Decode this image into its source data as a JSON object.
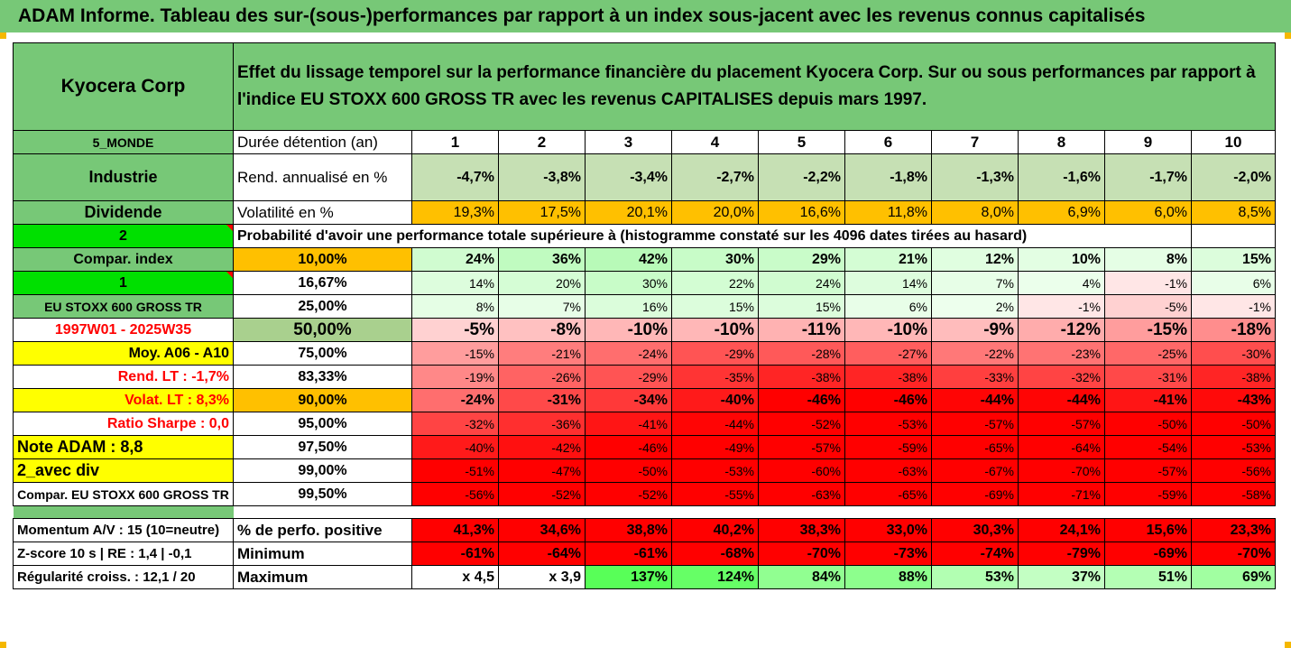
{
  "title": "ADAM Informe. Tableau des sur-(sous-)performances par rapport à un index sous-jacent avec les revenus connus capitalisés",
  "header": {
    "company": "Kyocera Corp",
    "description": "Effet du lissage temporel sur la performance financière du placement Kyocera Corp. Sur ou sous performances par rapport à l'indice EU STOXX 600 GROSS TR avec les revenus CAPITALISES depuis mars 1997."
  },
  "side": {
    "region": "5_MONDE",
    "sector": "Industrie",
    "dividend_label": "Dividende",
    "dividend_value": "2",
    "compar_index": "Compar. index",
    "compar_value": "1",
    "index_name": "EU STOXX 600 GROSS TR",
    "period": "1997W01 - 2025W35",
    "moy": "Moy. A06 - A10",
    "rend_lt": "Rend. LT :   -1,7%",
    "volat_lt": "Volat. LT :   8,3%",
    "sharpe": "Ratio Sharpe :   0,0",
    "note": "Note ADAM : 8,8",
    "avec_div": "2_avec div",
    "compar_full": "Compar. EU STOXX 600 GROSS TR"
  },
  "rows": {
    "duree": {
      "label": "Durée détention (an)",
      "values": [
        "1",
        "2",
        "3",
        "4",
        "5",
        "6",
        "7",
        "8",
        "9",
        "10"
      ]
    },
    "rend": {
      "label": "Rend. annualisé en %",
      "values": [
        "-4,7%",
        "-3,8%",
        "-3,4%",
        "-2,7%",
        "-2,2%",
        "-1,8%",
        "-1,3%",
        "-1,6%",
        "-1,7%",
        "-2,0%"
      ]
    },
    "vol": {
      "label": "Volatilité en %",
      "values": [
        "19,3%",
        "17,5%",
        "20,1%",
        "20,0%",
        "16,6%",
        "11,8%",
        "8,0%",
        "6,9%",
        "6,0%",
        "8,5%"
      ]
    },
    "prob_caption": "Probabilité d'avoir une performance totale supérieure à (histogramme constaté sur les 4096 dates tirées au hasard)"
  },
  "quantiles": [
    {
      "pct": "10,00%",
      "values": [
        "24%",
        "36%",
        "42%",
        "30%",
        "29%",
        "21%",
        "12%",
        "10%",
        "8%",
        "15%"
      ]
    },
    {
      "pct": "16,67%",
      "values": [
        "14%",
        "20%",
        "30%",
        "22%",
        "24%",
        "14%",
        "7%",
        "4%",
        "-1%",
        "6%"
      ]
    },
    {
      "pct": "25,00%",
      "values": [
        "8%",
        "7%",
        "16%",
        "15%",
        "15%",
        "6%",
        "2%",
        "-1%",
        "-5%",
        "-1%"
      ]
    },
    {
      "pct": "50,00%",
      "values": [
        "-5%",
        "-8%",
        "-10%",
        "-10%",
        "-11%",
        "-10%",
        "-9%",
        "-12%",
        "-15%",
        "-18%"
      ]
    },
    {
      "pct": "75,00%",
      "values": [
        "-15%",
        "-21%",
        "-24%",
        "-29%",
        "-28%",
        "-27%",
        "-22%",
        "-23%",
        "-25%",
        "-30%"
      ]
    },
    {
      "pct": "83,33%",
      "values": [
        "-19%",
        "-26%",
        "-29%",
        "-35%",
        "-38%",
        "-38%",
        "-33%",
        "-32%",
        "-31%",
        "-38%"
      ]
    },
    {
      "pct": "90,00%",
      "values": [
        "-24%",
        "-31%",
        "-34%",
        "-40%",
        "-46%",
        "-46%",
        "-44%",
        "-44%",
        "-41%",
        "-43%"
      ]
    },
    {
      "pct": "95,00%",
      "values": [
        "-32%",
        "-36%",
        "-41%",
        "-44%",
        "-52%",
        "-53%",
        "-57%",
        "-57%",
        "-50%",
        "-50%"
      ]
    },
    {
      "pct": "97,50%",
      "values": [
        "-40%",
        "-42%",
        "-46%",
        "-49%",
        "-57%",
        "-59%",
        "-65%",
        "-64%",
        "-54%",
        "-53%"
      ]
    },
    {
      "pct": "99,00%",
      "values": [
        "-51%",
        "-47%",
        "-50%",
        "-53%",
        "-60%",
        "-63%",
        "-67%",
        "-70%",
        "-57%",
        "-56%"
      ]
    },
    {
      "pct": "99,50%",
      "values": [
        "-56%",
        "-52%",
        "-52%",
        "-55%",
        "-63%",
        "-65%",
        "-69%",
        "-71%",
        "-59%",
        "-58%"
      ]
    }
  ],
  "bottom": [
    {
      "side": "Momentum A/V : 15 (10=neutre)",
      "label": "% de perfo. positive",
      "values": [
        "41,3%",
        "34,6%",
        "38,8%",
        "40,2%",
        "38,3%",
        "33,0%",
        "30,3%",
        "24,1%",
        "15,6%",
        "23,3%"
      ]
    },
    {
      "side": "Z-score 10 s  | RE : 1,4 | -0,1",
      "label": "Minimum",
      "values": [
        "-61%",
        "-64%",
        "-61%",
        "-68%",
        "-70%",
        "-73%",
        "-74%",
        "-79%",
        "-69%",
        "-70%"
      ]
    },
    {
      "side": "Régularité croiss. : 12,1 / 20",
      "label": "Maximum",
      "values": [
        "x 4,5",
        "x 3,9",
        "137%",
        "124%",
        "84%",
        "88%",
        "53%",
        "37%",
        "51%",
        "69%"
      ]
    }
  ],
  "colors": {
    "header_green": "#77c877",
    "bright_green": "#00e000",
    "yellow": "#ffff00",
    "orange": "#ffc000",
    "red": "#ff0000"
  }
}
